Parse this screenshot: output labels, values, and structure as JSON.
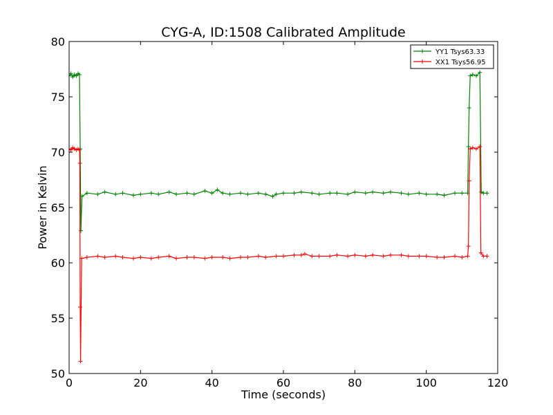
{
  "chart_data": {
    "type": "line",
    "title": "CYG-A, ID:1508 Calibrated Amplitude",
    "xlabel": "Time (seconds)",
    "ylabel": "Power in Kelvin",
    "xlim": [
      0,
      120
    ],
    "ylim": [
      50,
      80
    ],
    "xticks": [
      0,
      20,
      40,
      60,
      80,
      100,
      120
    ],
    "yticks": [
      50,
      55,
      60,
      65,
      70,
      75,
      80
    ],
    "grid": false,
    "legend_position": "top-right",
    "series": [
      {
        "name": "YY1 Tsys63.33",
        "color": "#008000",
        "marker": "+",
        "points": [
          [
            0,
            76.9
          ],
          [
            0.5,
            77.1
          ],
          [
            1.0,
            76.8
          ],
          [
            1.5,
            77.0
          ],
          [
            2.0,
            76.9
          ],
          [
            2.5,
            77.1
          ],
          [
            2.9,
            77.0
          ],
          [
            3.1,
            70.3
          ],
          [
            3.3,
            62.9
          ],
          [
            3.6,
            66.0
          ],
          [
            5,
            66.3
          ],
          [
            8,
            66.2
          ],
          [
            10,
            66.4
          ],
          [
            13,
            66.2
          ],
          [
            15,
            66.3
          ],
          [
            18,
            66.1
          ],
          [
            20,
            66.2
          ],
          [
            23,
            66.3
          ],
          [
            25,
            66.2
          ],
          [
            28,
            66.4
          ],
          [
            30,
            66.2
          ],
          [
            33,
            66.3
          ],
          [
            35,
            66.2
          ],
          [
            38,
            66.5
          ],
          [
            40,
            66.3
          ],
          [
            41.5,
            66.6
          ],
          [
            43,
            66.3
          ],
          [
            45,
            66.2
          ],
          [
            48,
            66.3
          ],
          [
            50,
            66.2
          ],
          [
            53,
            66.3
          ],
          [
            55,
            66.2
          ],
          [
            57,
            66.0
          ],
          [
            58,
            66.2
          ],
          [
            60,
            66.3
          ],
          [
            63,
            66.3
          ],
          [
            65,
            66.4
          ],
          [
            68,
            66.3
          ],
          [
            70,
            66.2
          ],
          [
            73,
            66.3
          ],
          [
            75,
            66.3
          ],
          [
            78,
            66.2
          ],
          [
            80,
            66.4
          ],
          [
            83,
            66.3
          ],
          [
            85,
            66.4
          ],
          [
            88,
            66.3
          ],
          [
            90,
            66.4
          ],
          [
            93,
            66.3
          ],
          [
            95,
            66.2
          ],
          [
            98,
            66.3
          ],
          [
            100,
            66.2
          ],
          [
            103,
            66.2
          ],
          [
            105,
            66.1
          ],
          [
            108,
            66.3
          ],
          [
            110,
            66.3
          ],
          [
            111.6,
            66.3
          ],
          [
            111.8,
            70.5
          ],
          [
            112.0,
            74.0
          ],
          [
            112.3,
            76.9
          ],
          [
            113,
            77.0
          ],
          [
            114,
            76.9
          ],
          [
            115,
            77.2
          ],
          [
            115.4,
            66.4
          ],
          [
            116,
            66.3
          ],
          [
            117,
            66.3
          ]
        ]
      },
      {
        "name": "XX1 Tsys56.95",
        "color": "#ff0000",
        "marker": "+",
        "points": [
          [
            0,
            70.3
          ],
          [
            0.5,
            70.2
          ],
          [
            1.0,
            70.4
          ],
          [
            1.5,
            70.3
          ],
          [
            2.0,
            70.2
          ],
          [
            2.5,
            70.3
          ],
          [
            2.9,
            70.2
          ],
          [
            3.0,
            69.0
          ],
          [
            3.1,
            56.0
          ],
          [
            3.2,
            51.1
          ],
          [
            3.5,
            60.4
          ],
          [
            5,
            60.5
          ],
          [
            8,
            60.6
          ],
          [
            10,
            60.5
          ],
          [
            13,
            60.6
          ],
          [
            15,
            60.5
          ],
          [
            18,
            60.4
          ],
          [
            20,
            60.5
          ],
          [
            23,
            60.4
          ],
          [
            25,
            60.5
          ],
          [
            28,
            60.6
          ],
          [
            30,
            60.4
          ],
          [
            33,
            60.5
          ],
          [
            35,
            60.5
          ],
          [
            38,
            60.4
          ],
          [
            40,
            60.5
          ],
          [
            43,
            60.5
          ],
          [
            45,
            60.4
          ],
          [
            48,
            60.5
          ],
          [
            50,
            60.5
          ],
          [
            53,
            60.6
          ],
          [
            55,
            60.5
          ],
          [
            58,
            60.6
          ],
          [
            60,
            60.6
          ],
          [
            63,
            60.7
          ],
          [
            65,
            60.7
          ],
          [
            66,
            60.8
          ],
          [
            68,
            60.6
          ],
          [
            70,
            60.6
          ],
          [
            73,
            60.6
          ],
          [
            75,
            60.7
          ],
          [
            78,
            60.6
          ],
          [
            80,
            60.7
          ],
          [
            83,
            60.6
          ],
          [
            85,
            60.7
          ],
          [
            88,
            60.6
          ],
          [
            90,
            60.7
          ],
          [
            93,
            60.7
          ],
          [
            95,
            60.6
          ],
          [
            98,
            60.6
          ],
          [
            100,
            60.6
          ],
          [
            103,
            60.5
          ],
          [
            105,
            60.5
          ],
          [
            108,
            60.6
          ],
          [
            110,
            60.5
          ],
          [
            111.6,
            60.6
          ],
          [
            111.8,
            61.5
          ],
          [
            112.0,
            67.4
          ],
          [
            112.3,
            70.3
          ],
          [
            113,
            70.4
          ],
          [
            114,
            70.3
          ],
          [
            115,
            70.5
          ],
          [
            115.3,
            60.9
          ],
          [
            116,
            60.6
          ],
          [
            117,
            60.6
          ]
        ]
      }
    ]
  }
}
